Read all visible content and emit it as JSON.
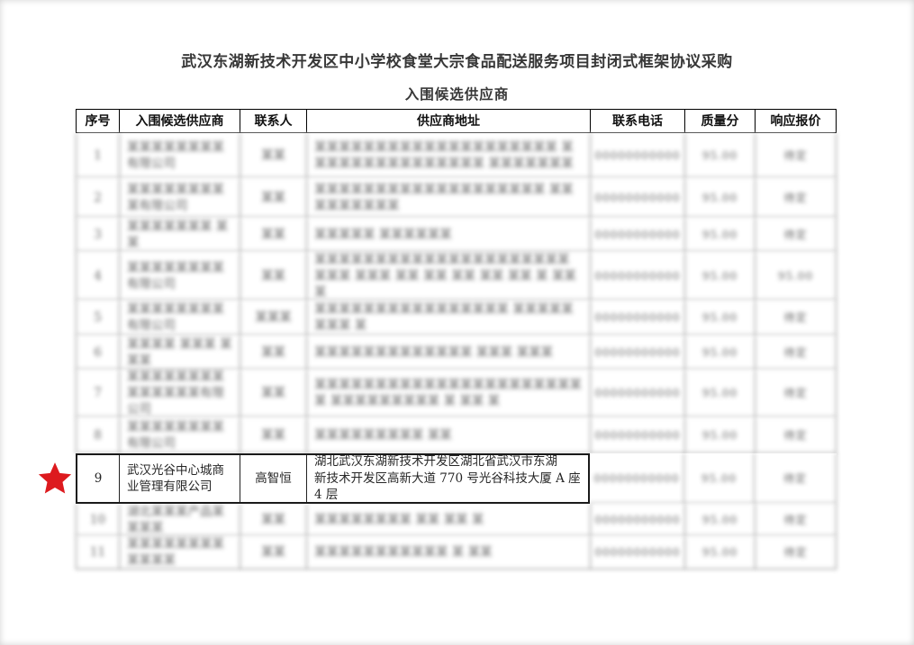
{
  "document": {
    "title": "武汉东湖新技术开发区中小学校食堂大宗食品配送服务项目封闭式框架协议采购",
    "subtitle": "入围候选供应商"
  },
  "highlight": {
    "marker": "red-star",
    "color": "#dd1a1e",
    "marked_row_seq": "9"
  },
  "table": {
    "headers": [
      "序号",
      "入围候选供应商",
      "联系人",
      "供应商地址",
      "联系电话",
      "质量分",
      "响应报价"
    ],
    "rows": [
      {
        "seq": "1",
        "blurred": true,
        "name": "某某某某某某某某有限公司",
        "contact": "某某",
        "address": "某某某某某某某某某某某某某某某某某某某某 某某某某某某某某某某某某某某某 某某某某某某某",
        "phone": "00000000000",
        "score": "95.00",
        "price": "待定"
      },
      {
        "seq": "2",
        "blurred": true,
        "name": "某某某某某某某某某有限公司",
        "contact": "某某",
        "address": "某某某某某某某某某某某某某某某某某某某 某某某某某某某某某",
        "phone": "00000000000",
        "score": "95.00",
        "price": "待定"
      },
      {
        "seq": "3",
        "blurred": true,
        "name": "某某某某某某某 某某",
        "contact": "某某",
        "address": "某某某某某 某某某某某某",
        "phone": "00000000000",
        "score": "95.00",
        "price": "待定"
      },
      {
        "seq": "4",
        "blurred": true,
        "name": "某某某某某某某某有限公司",
        "contact": "某某",
        "address": "某某某某某某某某某某某某某某某某某某某某某 某某某 某某某 某某 某某 某某 某某 某某 某 某某某",
        "phone": "00000000000",
        "score": "95.00",
        "price": "95.00"
      },
      {
        "seq": "5",
        "blurred": true,
        "name": "某某某某某某某某有限公司",
        "contact": "某某某",
        "address": "某某某某某某某某某某某某某某某某 某某某某某 某某某 某",
        "phone": "00000000000",
        "score": "95.00",
        "price": "待定"
      },
      {
        "seq": "6",
        "blurred": true,
        "name": "某某某某 某某某 某某某",
        "contact": "某某",
        "address": "某某某某某某某某某某某某某 某某某 某某某",
        "phone": "00000000000",
        "score": "95.00",
        "price": "待定"
      },
      {
        "seq": "7",
        "blurred": true,
        "name": "某某某某某某某某某某某某某某有限公司",
        "contact": "某某",
        "address": "某某某某某某某某某某某某某某某某某某某某某某某 某某某某某某某某某 某 某某 某",
        "phone": "00000000000",
        "score": "95.00",
        "price": "待定"
      },
      {
        "seq": "8",
        "blurred": true,
        "name": "某某某某某某某某 有限公司",
        "contact": "某某",
        "address": "某某某某某某某某某 某某",
        "phone": "00000000000",
        "score": "95.00",
        "price": "待定"
      },
      {
        "seq": "9",
        "blurred": false,
        "highlighted": true,
        "name": "武汉光谷中心城商\n业管理有限公司",
        "contact": "高智恒",
        "address": "湖北武汉东湖新技术开发区湖北省武汉市东湖\n新技术开发区高新大道 770 号光谷科技大厦 A 座\n4 层",
        "phone": "00000000000",
        "score": "95.00",
        "price": "待定"
      },
      {
        "seq": "10",
        "blurred": true,
        "name": "湖北某某某产品某 某某某",
        "contact": "某某",
        "address": "某某某某某某某某 某某 某某 某",
        "phone": "00000000000",
        "score": "95.00",
        "price": "待定"
      },
      {
        "seq": "11",
        "blurred": true,
        "name": "某某某某某某某某 某某某某",
        "contact": "某某",
        "address": "某某某某某某某某某某某 某 某某",
        "phone": "00000000000",
        "score": "95.00",
        "price": "待定"
      }
    ]
  }
}
